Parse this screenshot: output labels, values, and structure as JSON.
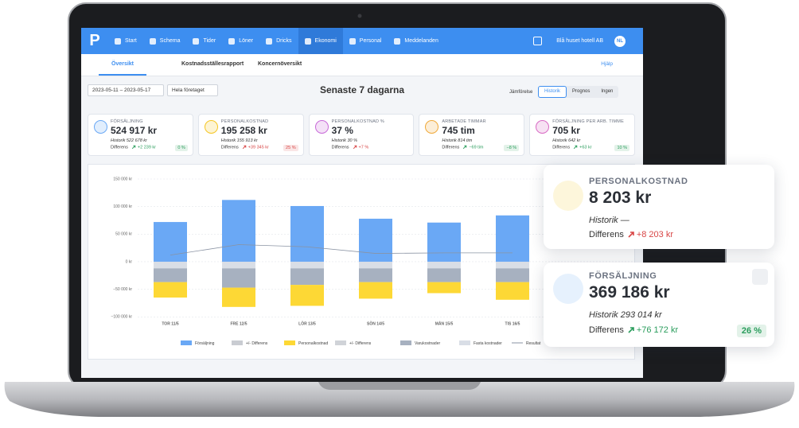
{
  "nav": {
    "logo": "P",
    "items": [
      {
        "label": "Start",
        "active": false
      },
      {
        "label": "Schema",
        "active": false
      },
      {
        "label": "Tider",
        "active": false
      },
      {
        "label": "Löner",
        "active": false
      },
      {
        "label": "Dricks",
        "active": false
      },
      {
        "label": "Ekonomi",
        "active": true
      },
      {
        "label": "Personal",
        "active": false
      },
      {
        "label": "Meddelanden",
        "active": false
      }
    ],
    "company": "Blå huset hotell AB",
    "user": "NL"
  },
  "tabs": {
    "items": [
      "Översikt",
      "Kostnadsställesrapport",
      "Koncernöversikt"
    ],
    "active": 0,
    "help": "Hjälp"
  },
  "toolbar": {
    "date_range": "2023-05-11 – 2023-05-17",
    "scope": "Hela företaget",
    "title": "Senaste 7 dagarna",
    "compare_label": "Jämförelse",
    "compare_options": [
      "Historik",
      "Prognos",
      "Ingen"
    ],
    "compare_active": 0
  },
  "kpis": [
    {
      "label": "FÖRSÄLJNING",
      "value": "524 917 kr",
      "history_label": "Historik",
      "history_value": "522 678 kr",
      "diff_label": "Differens",
      "diff_value": "+2 239 kr",
      "diff_color": "#2a9d5c",
      "pct": "0 %",
      "pct_color": "#2a9d5c",
      "icon_color": "#6aa8f5"
    },
    {
      "label": "PERSONALKOSTNAD",
      "value": "195 258 kr",
      "history_label": "Historik",
      "history_value": "155 913 kr",
      "diff_label": "Differens",
      "diff_value": "+39 345 kr",
      "diff_color": "#d84545",
      "pct": "25 %",
      "pct_color": "#d84545",
      "icon_color": "#f5c623"
    },
    {
      "label": "PERSONALKOSTNAD %",
      "value": "37 %",
      "history_label": "Historik",
      "history_value": "30 %",
      "diff_label": "Differens",
      "diff_value": "+7 %",
      "diff_color": "#d84545",
      "icon_color": "#c86ad8"
    },
    {
      "label": "ARBETADE TIMMAR",
      "value": "745 tim",
      "history_label": "Historik",
      "history_value": "814 tim",
      "diff_label": "Differens",
      "diff_value": "−69 tim",
      "diff_color": "#2a9d5c",
      "pct": "−8 %",
      "pct_color": "#2a9d5c",
      "icon_color": "#f0a93a"
    },
    {
      "label": "FÖRSÄLJNING PER ARB. TIMME",
      "value": "705 kr",
      "history_label": "Historik",
      "history_value": "642 kr",
      "diff_label": "Differens",
      "diff_value": "+63 kr",
      "diff_color": "#2a9d5c",
      "pct": "10 %",
      "pct_color": "#2a9d5c",
      "icon_color": "#d86ac4"
    }
  ],
  "chart_data": {
    "type": "bar",
    "stacked": true,
    "grid": true,
    "categories": [
      "TOR 11/5",
      "FRE 12/5",
      "LÖR 13/5",
      "SÖN 14/5",
      "MÅN 15/5",
      "TIS 16/5"
    ],
    "ylim": [
      -100000,
      150000
    ],
    "yticks": [
      {
        "value": -100000,
        "label": "−100 000 kr"
      },
      {
        "value": -50000,
        "label": "−50 000 kr"
      },
      {
        "value": 0,
        "label": "0 kr"
      },
      {
        "value": 50000,
        "label": "50 000 kr"
      },
      {
        "value": 100000,
        "label": "100 000 kr"
      },
      {
        "value": 150000,
        "label": "150 000 kr"
      }
    ],
    "series": [
      {
        "name": "Försäljning",
        "color": "#6aa8f5",
        "kind": "bar",
        "values": [
          72000,
          112000,
          101000,
          78000,
          71000,
          84000
        ]
      },
      {
        "name": "+/- Differens",
        "color": "#c9ccd2",
        "kind": "bar",
        "values": [
          null,
          null,
          null,
          null,
          null,
          null
        ]
      },
      {
        "name": "Personalkostnad",
        "color": "#fdd835",
        "kind": "bar",
        "values": [
          -28000,
          -35000,
          -38000,
          -30000,
          -20000,
          -32000
        ]
      },
      {
        "name": "+/- Differens",
        "color": "#d0d3d8",
        "kind": "bar",
        "values": [
          null,
          null,
          null,
          null,
          null,
          null
        ]
      },
      {
        "name": "Varukostnader",
        "color": "#a7b1c0",
        "kind": "bar",
        "values": [
          -25000,
          -35000,
          -30000,
          -25000,
          -25000,
          -25000
        ]
      },
      {
        "name": "Fasta kostnader",
        "color": "#d9dee6",
        "kind": "bar",
        "values": [
          -12000,
          -12000,
          -12000,
          -12000,
          -12000,
          -12000
        ]
      },
      {
        "name": "Resultat",
        "color": "#8a93a3",
        "kind": "line",
        "values": [
          12000,
          31000,
          27000,
          15000,
          16000,
          16000
        ]
      }
    ],
    "stack_order": [
      0,
      5,
      4,
      2
    ]
  },
  "popups": [
    {
      "label": "PERSONALKOSTNAD",
      "value": "8 203 kr",
      "history_label": "Historik",
      "history_value": "—",
      "diff_label": "Differens",
      "diff_value": "+8 203 kr",
      "diff_color": "#d84545",
      "icon_color": "#f5c623"
    },
    {
      "label": "FÖRSÄLJNING",
      "value": "369 186 kr",
      "history_label": "Historik",
      "history_value": "293 014 kr",
      "diff_label": "Differens",
      "diff_value": "+76 172 kr",
      "diff_color": "#2a9d5c",
      "pct": "26 %",
      "pct_color": "#2a9d5c",
      "icon_color": "#6aa8f5"
    }
  ]
}
